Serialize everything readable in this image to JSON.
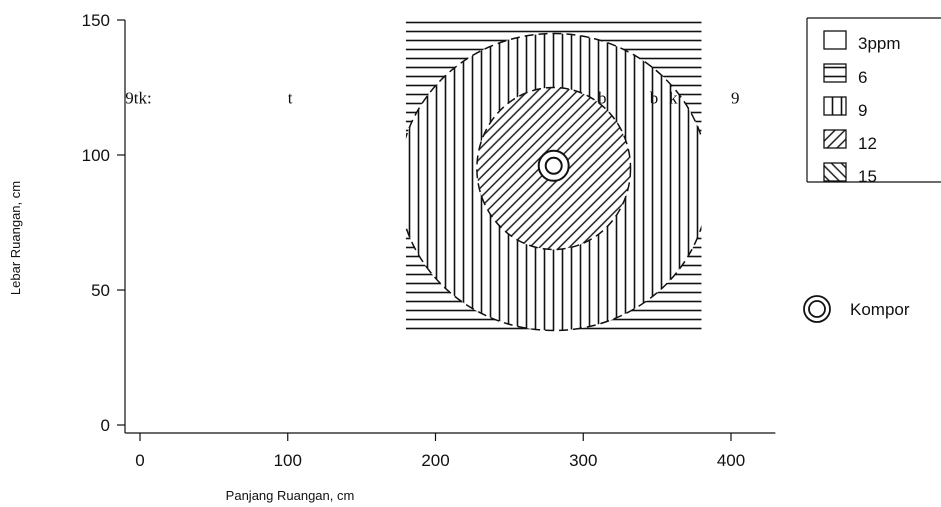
{
  "chart_data": {
    "type": "heatmap",
    "title": "",
    "xlabel": "Panjang Ruangan, cm",
    "ylabel": "Lebar Ruangan, cm",
    "xlim": [
      -10,
      430
    ],
    "ylim": [
      -3,
      150
    ],
    "xticks": [
      0,
      100,
      200,
      300,
      400
    ],
    "yticks": [
      0,
      50,
      100,
      150
    ],
    "xtick_labels": [
      "0",
      "100",
      "200",
      "300",
      "400"
    ],
    "ytick_labels": [
      "0",
      "50",
      "100",
      "150"
    ],
    "grid": false,
    "legend_placement": "top-right, outside plot",
    "levels": [
      {
        "label": "3ppm",
        "pattern": "empty"
      },
      {
        "label": "6",
        "pattern": "horizontal lines"
      },
      {
        "label": "9",
        "pattern": "vertical lines"
      },
      {
        "label": "12",
        "pattern": "diagonal lines (/)"
      },
      {
        "label": "15",
        "pattern": "diagonal lines (\\)"
      }
    ],
    "regions": [
      {
        "level": "6",
        "x_range": [
          180,
          380
        ],
        "y_range": [
          33,
          150
        ]
      },
      {
        "level": "9",
        "center": [
          280,
          90
        ],
        "radii": [
          105,
          55
        ]
      },
      {
        "level": "12",
        "center": [
          280,
          95
        ],
        "radii": [
          52,
          30
        ]
      }
    ],
    "source": {
      "label": "Kompor",
      "x": 280,
      "y": 96
    },
    "stray_text": [
      {
        "text": "9tk:",
        "x": -10,
        "y": 119
      },
      {
        "text": "t",
        "x": 100,
        "y": 119
      },
      {
        "text": "b",
        "x": 310,
        "y": 119
      },
      {
        "text": "b",
        "x": 345,
        "y": 119
      },
      {
        "text": "k",
        "x": 358,
        "y": 119
      },
      {
        "text": "9",
        "x": 400,
        "y": 119
      }
    ]
  },
  "legend": {
    "items": [
      "3ppm",
      "6",
      "9",
      "12",
      "15"
    ],
    "kompor_label": "Kompor"
  },
  "colors": {
    "ink": "#111111",
    "background": "#ffffff"
  }
}
